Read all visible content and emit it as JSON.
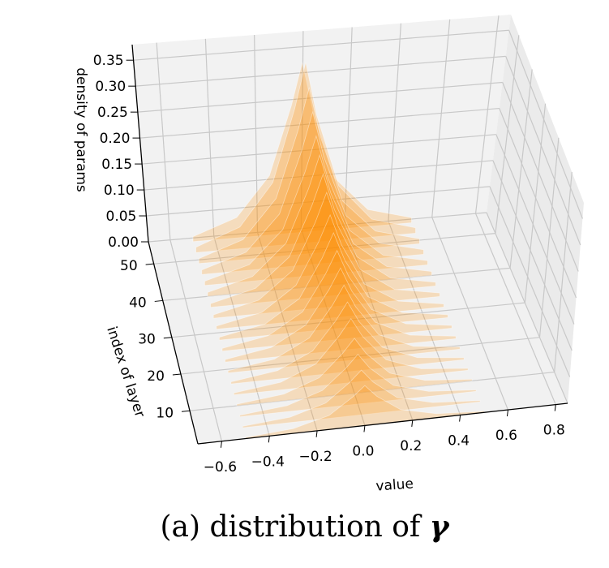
{
  "chart_data": {
    "type": "area",
    "title": "",
    "caption_prefix": "(a) distribution of",
    "caption_symbol": "γ",
    "xlabel": "value",
    "ylabel": "index of layer",
    "zlabel": "density of params",
    "x_ticks": [
      "−0.6",
      "−0.4",
      "−0.2",
      "0.0",
      "0.2",
      "0.4",
      "0.6",
      "0.8"
    ],
    "y_ticks": [
      "10",
      "20",
      "30",
      "40",
      "50"
    ],
    "z_ticks": [
      "0.00",
      "0.05",
      "0.10",
      "0.15",
      "0.20",
      "0.25",
      "0.30",
      "0.35"
    ],
    "xlim": [
      -0.7,
      0.85
    ],
    "ylim": [
      1,
      56
    ],
    "zlim": [
      0,
      0.38
    ],
    "color": "#ff8c00",
    "grid": true,
    "layers": [
      1,
      4,
      7,
      10,
      13,
      16,
      19,
      22,
      25,
      28,
      31,
      34,
      37,
      40,
      43,
      46,
      49,
      52,
      55
    ],
    "profile_x": [
      -0.5,
      -0.3,
      -0.15,
      -0.05,
      0.0,
      0.05,
      0.15,
      0.3,
      0.5
    ],
    "peak_density": [
      0.14,
      0.15,
      0.16,
      0.17,
      0.19,
      0.2,
      0.21,
      0.22,
      0.23,
      0.24,
      0.25,
      0.27,
      0.28,
      0.29,
      0.3,
      0.32,
      0.34,
      0.36,
      0.33
    ],
    "profile_shape": [
      0.03,
      0.12,
      0.35,
      0.75,
      1.0,
      0.7,
      0.3,
      0.1,
      0.03
    ]
  }
}
